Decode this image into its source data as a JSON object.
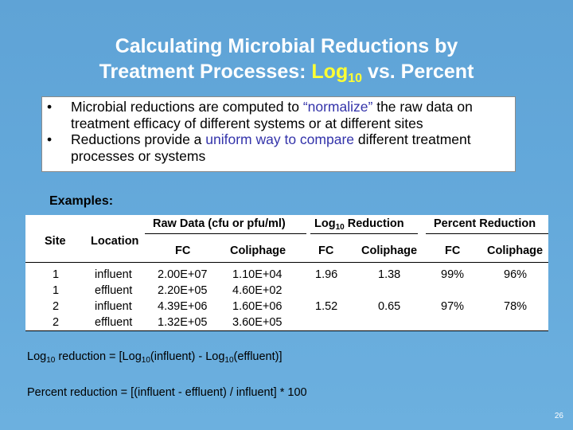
{
  "title": {
    "line1": "Calculating Microbial Reductions by",
    "line2_prefix": "Treatment Processes: ",
    "log_base": "Log",
    "log_sub": "10",
    "line2_suffix": " vs. Percent"
  },
  "bullets": {
    "b1_pre": "Microbial reductions are computed to ",
    "b1_accent": "“normalize”",
    "b1_post": " the raw data on treatment efficacy of different systems or at different sites",
    "b2_pre": "Reductions provide a ",
    "b2_accent": "uniform way to compare",
    "b2_post": " different treatment processes or systems",
    "marker": "•"
  },
  "examples_label": "Examples:",
  "table": {
    "group_raw": "Raw Data (cfu or pfu/ml)",
    "group_log_prefix": "Log",
    "group_log_sub": "10",
    "group_log_suffix": " Reduction",
    "group_pct": "Percent Reduction",
    "col_site": "Site",
    "col_location": "Location",
    "col_fc": "FC",
    "col_coliphage": "Coliphage",
    "rows": [
      {
        "site": "1",
        "location": "influent",
        "raw_fc": "2.00E+07",
        "raw_col": "1.10E+04",
        "log_fc": "1.96",
        "log_col": "1.38",
        "pct_fc": "99%",
        "pct_col": "96%"
      },
      {
        "site": "1",
        "location": "effluent",
        "raw_fc": "2.20E+05",
        "raw_col": "4.60E+02",
        "log_fc": "",
        "log_col": "",
        "pct_fc": "",
        "pct_col": ""
      },
      {
        "site": "2",
        "location": "influent",
        "raw_fc": "4.39E+06",
        "raw_col": "1.60E+06",
        "log_fc": "1.52",
        "log_col": "0.65",
        "pct_fc": "97%",
        "pct_col": "78%"
      },
      {
        "site": "2",
        "location": "effluent",
        "raw_fc": "1.32E+05",
        "raw_col": "3.60E+05",
        "log_fc": "",
        "log_col": "",
        "pct_fc": "",
        "pct_col": ""
      }
    ]
  },
  "formulas": {
    "log_a": "Log",
    "log_a_sub": "10",
    "log_b": " reduction = [Log",
    "log_b_sub": "10",
    "log_c": "(influent) - Log",
    "log_c_sub": "10",
    "log_d": "(effluent)]",
    "percent": "Percent reduction = [(influent - effluent) / influent] * 100"
  },
  "page_number": "26"
}
